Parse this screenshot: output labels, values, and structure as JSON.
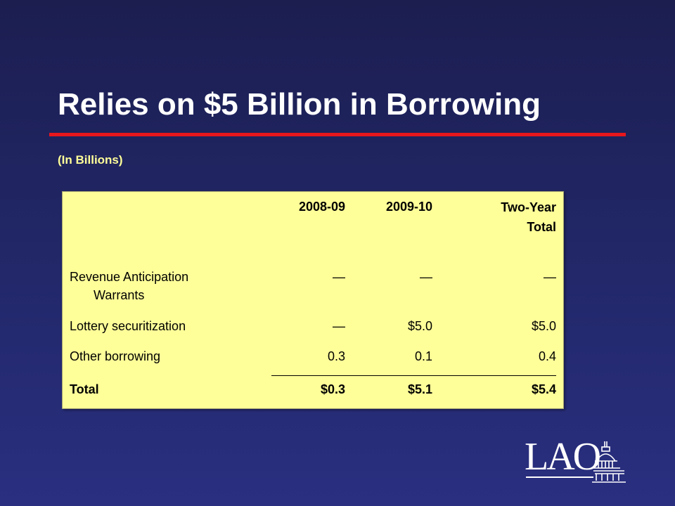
{
  "slide": {
    "title": "Relies on $5 Billion in Borrowing",
    "subtitle": "(In Billions)"
  },
  "table": {
    "headers": {
      "col1": "2008-09",
      "col2": "2009-10",
      "col3": "Two-Year Total"
    },
    "rows": [
      {
        "label": "Revenue Anticipation Warrants",
        "col1": "—",
        "col2": "—",
        "col3": "—"
      },
      {
        "label": "Lottery securitization",
        "col1": "—",
        "col2": "$5.0",
        "col3": "$5.0"
      },
      {
        "label": "Other borrowing",
        "col1": "0.3",
        "col2": "0.1",
        "col3": "0.4"
      }
    ],
    "total": {
      "label": "Total",
      "col1": "$0.3",
      "col2": "$5.1",
      "col3": "$5.4"
    }
  },
  "logo": {
    "text": "LAO"
  },
  "colors": {
    "background": "#22286a",
    "title": "#ffffff",
    "rule": "#e8161d",
    "subtitle": "#ffff99",
    "table_fill": "#ffff99"
  }
}
